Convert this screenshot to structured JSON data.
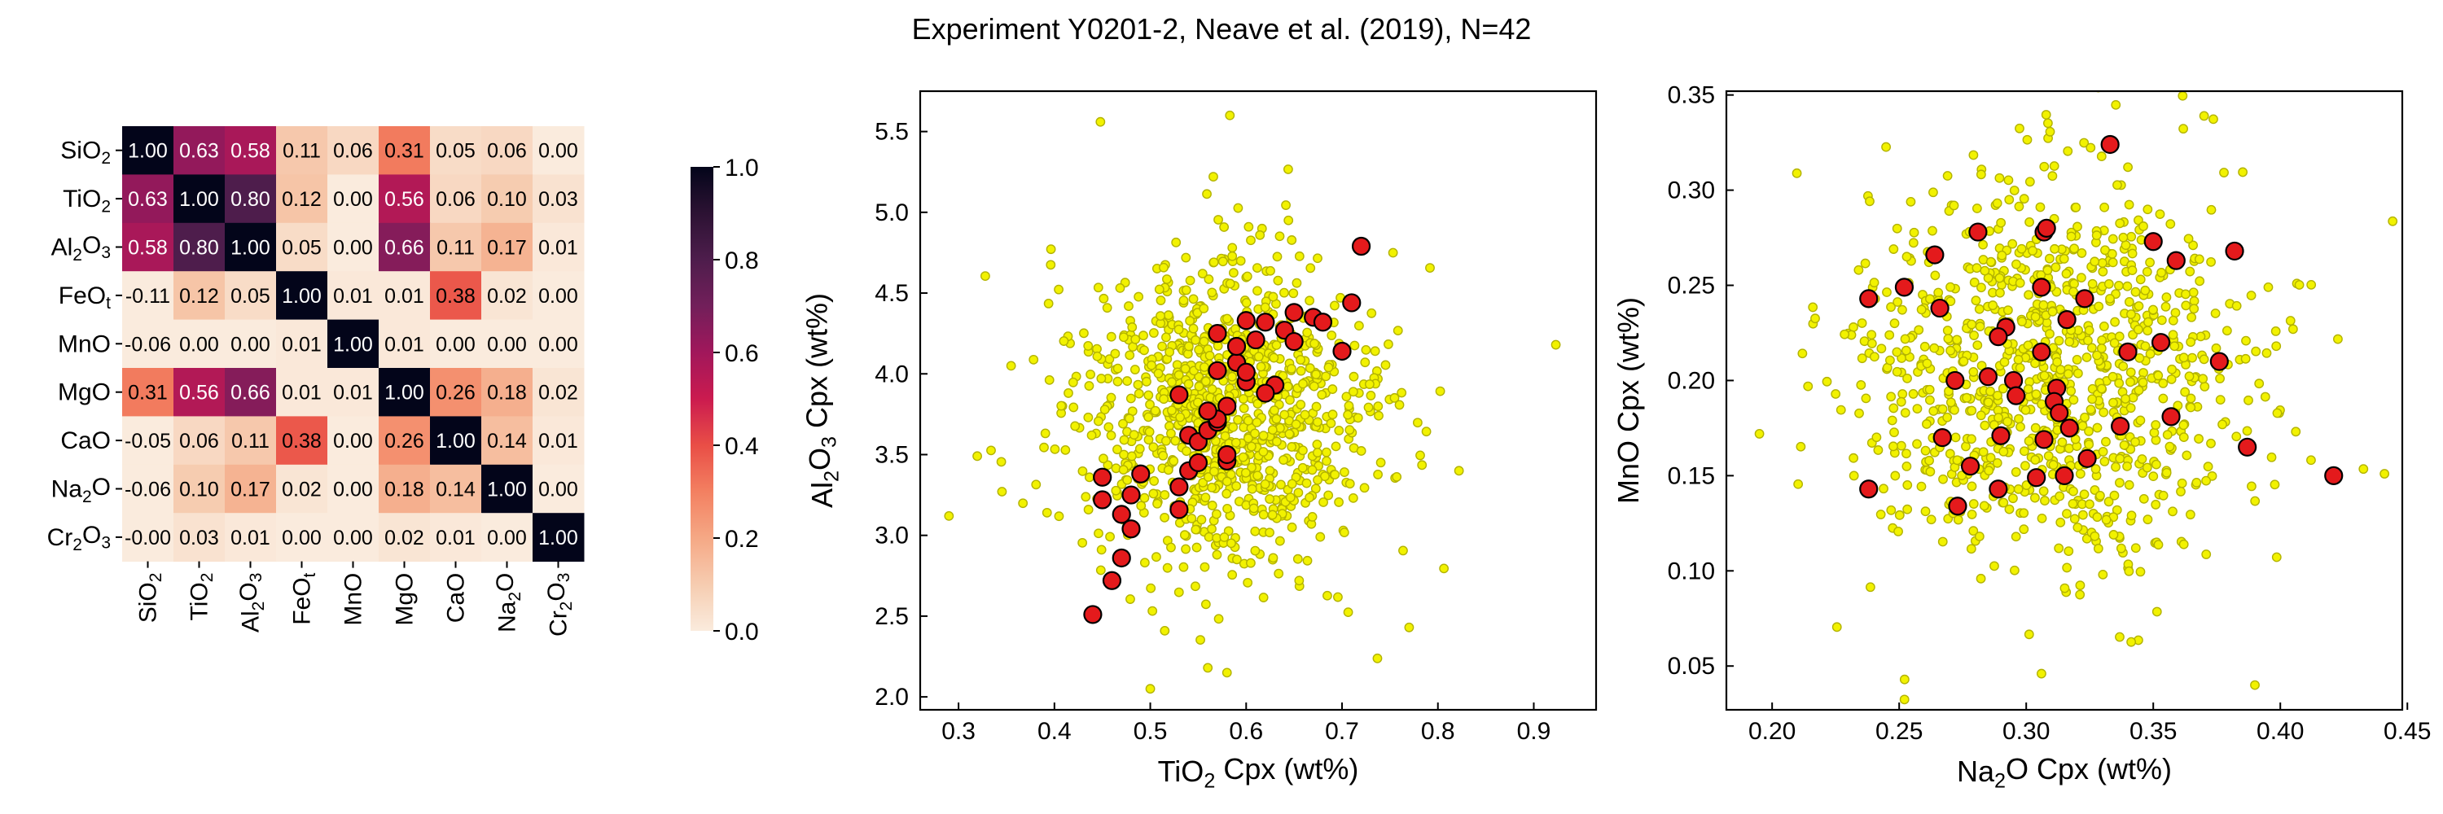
{
  "figure": {
    "title": "Experiment Y0201-2, Neave et al. (2019), N=42"
  },
  "colors": {
    "background_points_fill": "#f2f200",
    "background_points_edge": "#b3b300",
    "highlight_points_fill": "#e41a1c",
    "highlight_points_edge": "#000000",
    "heatmap_colormap": "rocket_r"
  },
  "chart_data": [
    {
      "type": "heatmap",
      "title": "",
      "labels": [
        {
          "base": "SiO",
          "sub": "2",
          "tail": "",
          "sub2": ""
        },
        {
          "base": "TiO",
          "sub": "2",
          "tail": "",
          "sub2": ""
        },
        {
          "base": "Al",
          "sub": "2",
          "tail": "O",
          "sub2": "3"
        },
        {
          "base": "FeO",
          "sub": "t",
          "tail": "",
          "sub2": ""
        },
        {
          "base": "MnO",
          "sub": "",
          "tail": "",
          "sub2": ""
        },
        {
          "base": "MgO",
          "sub": "",
          "tail": "",
          "sub2": ""
        },
        {
          "base": "CaO",
          "sub": "",
          "tail": "",
          "sub2": ""
        },
        {
          "base": "Na",
          "sub": "2",
          "tail": "O",
          "sub2": ""
        },
        {
          "base": "Cr",
          "sub": "2",
          "tail": "O",
          "sub2": "3"
        }
      ],
      "matrix": [
        [
          1.0,
          0.63,
          0.58,
          0.11,
          0.06,
          0.31,
          0.05,
          0.06,
          0.0
        ],
        [
          0.63,
          1.0,
          0.8,
          0.12,
          0.0,
          0.56,
          0.06,
          0.1,
          0.03
        ],
        [
          0.58,
          0.8,
          1.0,
          0.05,
          0.0,
          0.66,
          0.11,
          0.17,
          0.01
        ],
        [
          -0.11,
          0.12,
          0.05,
          1.0,
          0.01,
          0.01,
          0.38,
          0.02,
          0.0
        ],
        [
          -0.06,
          0.0,
          0.0,
          0.01,
          1.0,
          0.01,
          0.0,
          0.0,
          0.0
        ],
        [
          0.31,
          0.56,
          0.66,
          0.01,
          0.01,
          1.0,
          0.26,
          0.18,
          0.02
        ],
        [
          -0.05,
          0.06,
          0.11,
          0.38,
          0.0,
          0.26,
          1.0,
          0.14,
          0.01
        ],
        [
          -0.06,
          0.1,
          0.17,
          0.02,
          0.0,
          0.18,
          0.14,
          1.0,
          0.0
        ],
        [
          -0.0,
          0.03,
          0.01,
          0.0,
          0.0,
          0.02,
          0.01,
          0.0,
          1.0
        ]
      ],
      "cell_labels": [
        [
          "1.00",
          "0.63",
          "0.58",
          "0.11",
          "0.06",
          "0.31",
          "0.05",
          "0.06",
          "0.00"
        ],
        [
          "0.63",
          "1.00",
          "0.80",
          "0.12",
          "0.00",
          "0.56",
          "0.06",
          "0.10",
          "0.03"
        ],
        [
          "0.58",
          "0.80",
          "1.00",
          "0.05",
          "0.00",
          "0.66",
          "0.11",
          "0.17",
          "0.01"
        ],
        [
          "-0.11",
          "0.12",
          "0.05",
          "1.00",
          "0.01",
          "0.01",
          "0.38",
          "0.02",
          "0.00"
        ],
        [
          "-0.06",
          "0.00",
          "0.00",
          "0.01",
          "1.00",
          "0.01",
          "0.00",
          "0.00",
          "0.00"
        ],
        [
          "0.31",
          "0.56",
          "0.66",
          "0.01",
          "0.01",
          "1.00",
          "0.26",
          "0.18",
          "0.02"
        ],
        [
          "-0.05",
          "0.06",
          "0.11",
          "0.38",
          "0.00",
          "0.26",
          "1.00",
          "0.14",
          "0.01"
        ],
        [
          "-0.06",
          "0.10",
          "0.17",
          "0.02",
          "0.00",
          "0.18",
          "0.14",
          "1.00",
          "0.00"
        ],
        [
          "-0.00",
          "0.03",
          "0.01",
          "0.00",
          "0.00",
          "0.02",
          "0.01",
          "0.00",
          "1.00"
        ]
      ],
      "colorbar": {
        "range": [
          0.0,
          1.0
        ],
        "ticks": [
          0.0,
          0.2,
          0.4,
          0.6,
          0.8,
          1.0
        ],
        "tick_labels": [
          "0.0",
          "0.2",
          "0.4",
          "0.6",
          "0.8",
          "1.0"
        ]
      }
    },
    {
      "type": "scatter",
      "title": "",
      "xlabel": {
        "base": "TiO",
        "sub": "2",
        "tail": " Cpx (wt%)"
      },
      "ylabel": {
        "base": "Al",
        "sub": "2",
        "mid": "O",
        "sub2": "3",
        "tail": " Cpx (wt%)"
      },
      "xlim": [
        0.26,
        0.965
      ],
      "ylim": [
        1.92,
        5.75
      ],
      "xticks": [
        0.3,
        0.4,
        0.5,
        0.6,
        0.7,
        0.8,
        0.9
      ],
      "xtick_labels": [
        "0.3",
        "0.4",
        "0.5",
        "0.6",
        "0.7",
        "0.8",
        "0.9"
      ],
      "yticks": [
        2.0,
        2.5,
        3.0,
        3.5,
        4.0,
        4.5,
        5.0,
        5.5
      ],
      "ytick_labels": [
        "2.0",
        "2.5",
        "3.0",
        "3.5",
        "4.0",
        "4.5",
        "5.0",
        "5.5"
      ],
      "grid": false,
      "background_cloud": {
        "count": 1000,
        "mean": [
          0.575,
          3.75
        ],
        "sd": [
          0.08,
          0.5
        ],
        "extra_points": [
          [
            0.448,
            5.56
          ],
          [
            0.583,
            5.6
          ],
          [
            0.29,
            3.12
          ],
          [
            0.923,
            4.18
          ],
          [
            0.822,
            3.4
          ],
          [
            0.5,
            2.05
          ],
          [
            0.56,
            2.18
          ],
          [
            0.58,
            2.15
          ],
          [
            0.77,
            2.43
          ]
        ]
      },
      "highlight_points": [
        [
          0.44,
          2.51
        ],
        [
          0.46,
          2.72
        ],
        [
          0.47,
          2.86
        ],
        [
          0.48,
          3.04
        ],
        [
          0.45,
          3.22
        ],
        [
          0.47,
          3.13
        ],
        [
          0.48,
          3.25
        ],
        [
          0.45,
          3.36
        ],
        [
          0.49,
          3.38
        ],
        [
          0.53,
          3.16
        ],
        [
          0.53,
          3.3
        ],
        [
          0.54,
          3.4
        ],
        [
          0.55,
          3.45
        ],
        [
          0.54,
          3.62
        ],
        [
          0.55,
          3.58
        ],
        [
          0.56,
          3.65
        ],
        [
          0.57,
          3.7
        ],
        [
          0.58,
          3.46
        ],
        [
          0.58,
          3.8
        ],
        [
          0.53,
          3.87
        ],
        [
          0.57,
          3.72
        ],
        [
          0.57,
          4.02
        ],
        [
          0.59,
          4.07
        ],
        [
          0.6,
          3.95
        ],
        [
          0.6,
          4.01
        ],
        [
          0.59,
          4.17
        ],
        [
          0.61,
          4.21
        ],
        [
          0.62,
          4.32
        ],
        [
          0.64,
          4.27
        ],
        [
          0.65,
          4.38
        ],
        [
          0.65,
          4.2
        ],
        [
          0.63,
          3.93
        ],
        [
          0.67,
          4.35
        ],
        [
          0.68,
          4.32
        ],
        [
          0.7,
          4.14
        ],
        [
          0.71,
          4.44
        ],
        [
          0.72,
          4.79
        ],
        [
          0.57,
          4.25
        ],
        [
          0.6,
          4.33
        ],
        [
          0.58,
          3.5
        ],
        [
          0.56,
          3.77
        ],
        [
          0.62,
          3.88
        ]
      ]
    },
    {
      "type": "scatter",
      "title": "",
      "xlabel": {
        "base": "Na",
        "sub": "2",
        "tail": "O Cpx (wt%)"
      },
      "ylabel": {
        "base": "MnO Cpx (wt%)",
        "sub": "",
        "tail": ""
      },
      "xlim": [
        0.182,
        0.448
      ],
      "ylim": [
        0.027,
        0.352
      ],
      "xticks": [
        0.2,
        0.25,
        0.3,
        0.35,
        0.4,
        0.45
      ],
      "xtick_labels": [
        "0.20",
        "0.25",
        "0.30",
        "0.35",
        "0.40",
        "0.45"
      ],
      "yticks": [
        0.05,
        0.1,
        0.15,
        0.2,
        0.25,
        0.3,
        0.35
      ],
      "ytick_labels": [
        "0.05",
        "0.10",
        "0.15",
        "0.20",
        "0.25",
        "0.30",
        "0.35"
      ],
      "grid": false,
      "background_cloud": {
        "count": 1000,
        "mean": [
          0.31,
          0.205
        ],
        "sd": [
          0.04,
          0.05
        ],
        "extra_points": [
          [
            0.306,
            0.046
          ],
          [
            0.39,
            0.04
          ],
          [
            0.441,
            0.151
          ],
          [
            0.195,
            0.172
          ],
          [
            0.37,
            0.339
          ]
        ]
      },
      "highlight_points": [
        [
          0.238,
          0.243
        ],
        [
          0.252,
          0.249
        ],
        [
          0.264,
          0.266
        ],
        [
          0.266,
          0.238
        ],
        [
          0.281,
          0.278
        ],
        [
          0.307,
          0.278
        ],
        [
          0.308,
          0.28
        ],
        [
          0.306,
          0.249
        ],
        [
          0.316,
          0.232
        ],
        [
          0.323,
          0.243
        ],
        [
          0.333,
          0.324
        ],
        [
          0.35,
          0.273
        ],
        [
          0.359,
          0.263
        ],
        [
          0.382,
          0.268
        ],
        [
          0.353,
          0.22
        ],
        [
          0.376,
          0.21
        ],
        [
          0.34,
          0.215
        ],
        [
          0.357,
          0.181
        ],
        [
          0.337,
          0.176
        ],
        [
          0.387,
          0.165
        ],
        [
          0.421,
          0.15
        ],
        [
          0.292,
          0.228
        ],
        [
          0.289,
          0.223
        ],
        [
          0.306,
          0.215
        ],
        [
          0.312,
          0.196
        ],
        [
          0.311,
          0.189
        ],
        [
          0.313,
          0.183
        ],
        [
          0.317,
          0.175
        ],
        [
          0.295,
          0.2
        ],
        [
          0.272,
          0.2
        ],
        [
          0.285,
          0.202
        ],
        [
          0.267,
          0.17
        ],
        [
          0.278,
          0.155
        ],
        [
          0.29,
          0.171
        ],
        [
          0.307,
          0.169
        ],
        [
          0.324,
          0.159
        ],
        [
          0.315,
          0.15
        ],
        [
          0.304,
          0.149
        ],
        [
          0.289,
          0.143
        ],
        [
          0.273,
          0.134
        ],
        [
          0.238,
          0.143
        ],
        [
          0.296,
          0.192
        ]
      ]
    }
  ]
}
